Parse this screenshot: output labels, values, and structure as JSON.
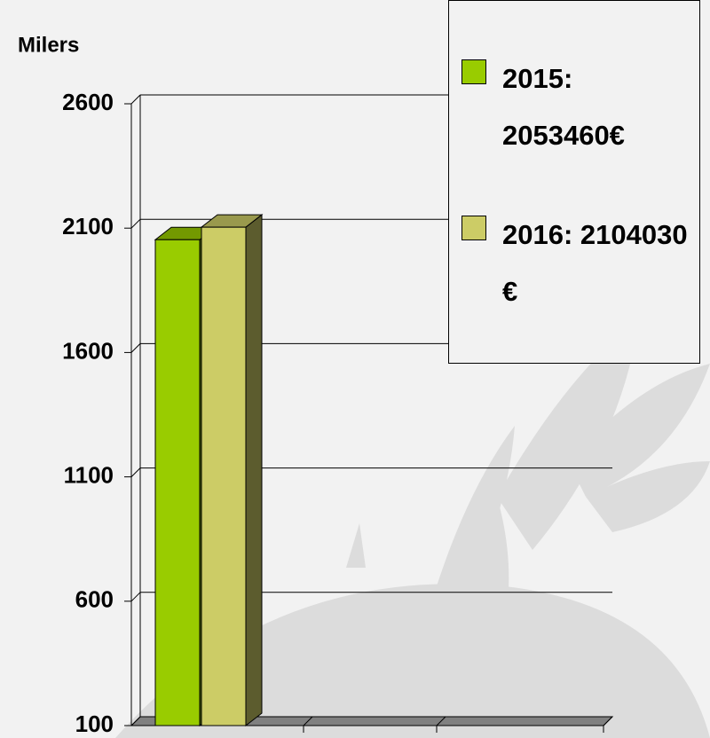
{
  "chart_data": {
    "type": "bar",
    "y_label": "Milers",
    "categories": [
      null
    ],
    "series": [
      {
        "name": "2015: 2053460€",
        "color": "#99cc00",
        "values": [
          2053.46
        ]
      },
      {
        "name": "2016: 2104030 €",
        "color": "#cccc66",
        "values": [
          2104.03
        ]
      }
    ],
    "ylim": [
      100,
      2600
    ],
    "yticks": [
      100,
      600,
      1100,
      1600,
      2100,
      2600
    ],
    "grid": true
  }
}
